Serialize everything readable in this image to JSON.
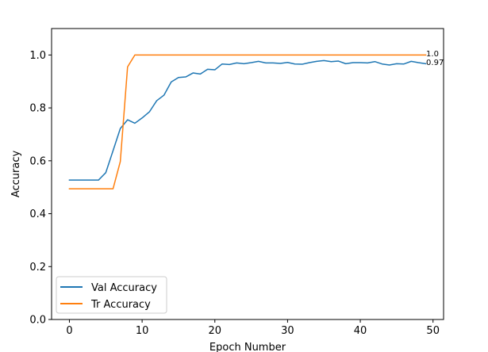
{
  "chart_data": {
    "type": "line",
    "xlabel": "Epoch Number",
    "ylabel": "Accuracy",
    "xlim": [
      -2.45,
      51.45
    ],
    "ylim": [
      0.0,
      1.1
    ],
    "xticks": [
      0,
      10,
      20,
      30,
      40,
      50
    ],
    "xtick_labels": [
      "0",
      "10",
      "20",
      "30",
      "40",
      "50"
    ],
    "yticks": [
      0.0,
      0.2,
      0.4,
      0.6,
      0.8,
      1.0
    ],
    "ytick_labels": [
      "0.0",
      "0.2",
      "0.4",
      "0.6",
      "0.8",
      "1.0"
    ],
    "grid": false,
    "legend_position": "lower-left",
    "x": [
      0,
      1,
      2,
      3,
      4,
      5,
      6,
      7,
      8,
      9,
      10,
      11,
      12,
      13,
      14,
      15,
      16,
      17,
      18,
      19,
      20,
      21,
      22,
      23,
      24,
      25,
      26,
      27,
      28,
      29,
      30,
      31,
      32,
      33,
      34,
      35,
      36,
      37,
      38,
      39,
      40,
      41,
      42,
      43,
      44,
      45,
      46,
      47,
      48,
      49
    ],
    "series": [
      {
        "name": "Val Accuracy",
        "color": "#1f77b4",
        "values": [
          0.527,
          0.527,
          0.527,
          0.527,
          0.527,
          0.555,
          0.638,
          0.722,
          0.755,
          0.742,
          0.762,
          0.785,
          0.827,
          0.848,
          0.898,
          0.915,
          0.917,
          0.932,
          0.928,
          0.946,
          0.944,
          0.966,
          0.964,
          0.97,
          0.967,
          0.971,
          0.976,
          0.97,
          0.97,
          0.968,
          0.972,
          0.966,
          0.965,
          0.971,
          0.976,
          0.979,
          0.975,
          0.977,
          0.967,
          0.971,
          0.971,
          0.97,
          0.975,
          0.966,
          0.962,
          0.967,
          0.966,
          0.976,
          0.971,
          0.967
        ]
      },
      {
        "name": "Tr Accuracy",
        "color": "#ff7f0e",
        "values": [
          0.494,
          0.494,
          0.494,
          0.494,
          0.494,
          0.494,
          0.494,
          0.597,
          0.955,
          1.0,
          1.0,
          1.0,
          1.0,
          1.0,
          1.0,
          1.0,
          1.0,
          1.0,
          1.0,
          1.0,
          1.0,
          1.0,
          1.0,
          1.0,
          1.0,
          1.0,
          1.0,
          1.0,
          1.0,
          1.0,
          1.0,
          1.0,
          1.0,
          1.0,
          1.0,
          1.0,
          1.0,
          1.0,
          1.0,
          1.0,
          1.0,
          1.0,
          1.0,
          1.0,
          1.0,
          1.0,
          1.0,
          1.0,
          1.0,
          1.0
        ]
      }
    ],
    "annotations": [
      {
        "text": "1.0",
        "x": 49,
        "y": 1.0
      },
      {
        "text": "0.97",
        "x": 49,
        "y": 0.967
      }
    ]
  }
}
